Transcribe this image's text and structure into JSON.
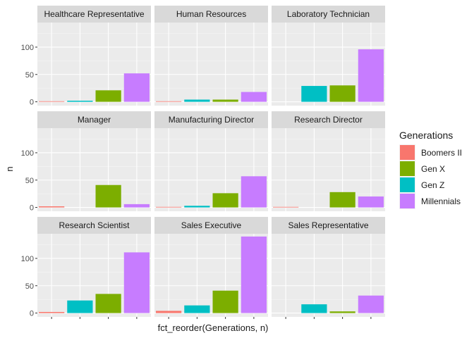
{
  "chart_data": {
    "type": "bar",
    "layout": "facet-grid",
    "xlabel": "fct_reorder(Generations, n)",
    "ylabel": "n",
    "ylim": [
      -7,
      145
    ],
    "yticks": [
      0,
      50,
      100
    ],
    "grid": true,
    "legend": {
      "title": "Generations",
      "position": "right",
      "items": [
        {
          "name": "Boomers II",
          "color": "#F8766D"
        },
        {
          "name": "Gen X",
          "color": "#7CAE00"
        },
        {
          "name": "Gen Z",
          "color": "#00BFC4"
        },
        {
          "name": "Millennials",
          "color": "#C77CFF"
        }
      ]
    },
    "categories": [
      "Boomers II",
      "Gen Z",
      "Gen X",
      "Millennials"
    ],
    "panels": [
      {
        "title": "Healthcare Representative",
        "values": [
          1,
          2,
          21,
          52
        ]
      },
      {
        "title": "Human Resources",
        "values": [
          1,
          4,
          4,
          18
        ]
      },
      {
        "title": "Laboratory Technician",
        "values": [
          null,
          29,
          30,
          96
        ]
      },
      {
        "title": "Manager",
        "values": [
          2,
          null,
          41,
          6
        ]
      },
      {
        "title": "Manufacturing Director",
        "values": [
          1,
          3,
          26,
          57
        ]
      },
      {
        "title": "Research Director",
        "values": [
          1,
          null,
          28,
          20
        ]
      },
      {
        "title": "Research Scientist",
        "values": [
          2,
          23,
          35,
          111
        ]
      },
      {
        "title": "Sales Executive",
        "values": [
          4,
          14,
          41,
          140
        ]
      },
      {
        "title": "Sales Representative",
        "values": [
          null,
          16,
          3,
          32
        ]
      }
    ]
  }
}
